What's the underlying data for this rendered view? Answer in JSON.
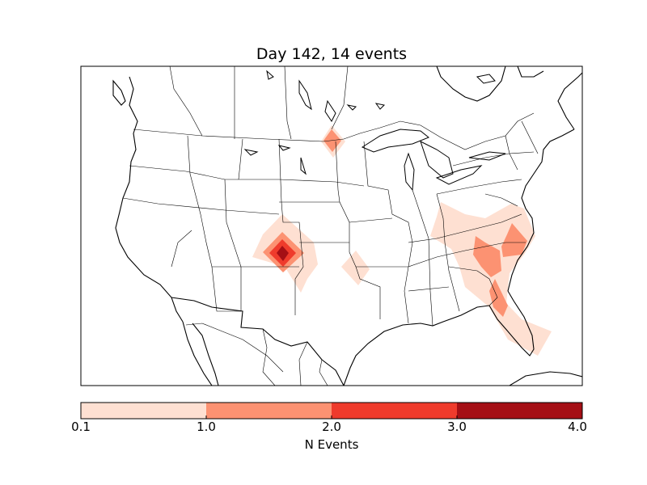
{
  "figure": {
    "title": "Day 142, 14 events"
  },
  "colorbar": {
    "label": "N Events",
    "ticks": [
      "0.1",
      "1.0",
      "2.0",
      "3.0",
      "4.0"
    ],
    "levels": [
      {
        "from": 0.1,
        "to": 1.0,
        "color": "#fee0d2"
      },
      {
        "from": 1.0,
        "to": 2.0,
        "color": "#fc9272"
      },
      {
        "from": 2.0,
        "to": 3.0,
        "color": "#ef3b2c"
      },
      {
        "from": 3.0,
        "to": 4.0,
        "color": "#a50f15"
      }
    ]
  },
  "map": {
    "region": "continental-united-states",
    "boundaries": "state-and-country-outlines",
    "event_levels_shown": [
      1,
      2,
      3,
      4
    ]
  }
}
